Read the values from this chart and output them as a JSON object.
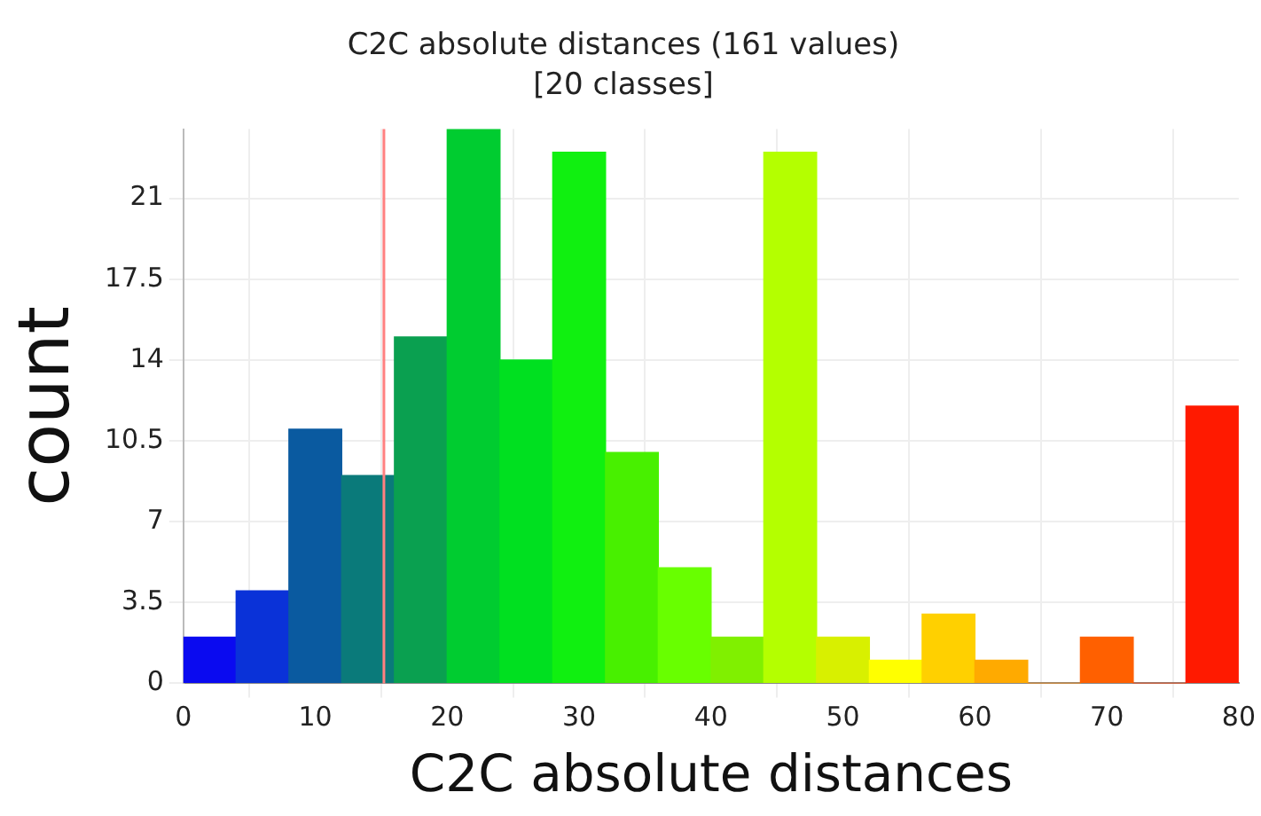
{
  "chart_data": {
    "type": "histogram",
    "title": "C2C absolute distances (161 values)",
    "subtitle": "[20 classes]",
    "xlabel": "C2C absolute distances",
    "ylabel": "count",
    "bins": [
      0,
      4,
      8,
      12,
      16,
      20,
      24,
      28,
      32,
      36,
      40,
      44,
      48,
      52,
      56,
      60,
      64,
      68,
      72,
      76,
      80
    ],
    "values": [
      2,
      4,
      11,
      9,
      15,
      24,
      14,
      23,
      10,
      5,
      2,
      23,
      2,
      1,
      3,
      1,
      0,
      2,
      0,
      12
    ],
    "colors": [
      "#0a0af0",
      "#0a32d8",
      "#0a5aa0",
      "#0a7a7a",
      "#0aa050",
      "#00cc30",
      "#00e020",
      "#10f010",
      "#48f000",
      "#68ff00",
      "#80f000",
      "#b4ff00",
      "#d8f000",
      "#ffff00",
      "#ffd000",
      "#ffaa00",
      "#ff8800",
      "#ff6000",
      "#ff4000",
      "#ff1a00"
    ],
    "xlim": [
      0,
      80
    ],
    "xticks": [
      0,
      10,
      20,
      30,
      40,
      50,
      60,
      70,
      80
    ],
    "ylim": [
      0,
      24
    ],
    "yticks": [
      0,
      3.5,
      7,
      10.5,
      14,
      17.5,
      21
    ],
    "ref_lines": [
      {
        "axis": "x",
        "value": 15.2,
        "color": "#ff8080"
      }
    ],
    "grid": true
  }
}
